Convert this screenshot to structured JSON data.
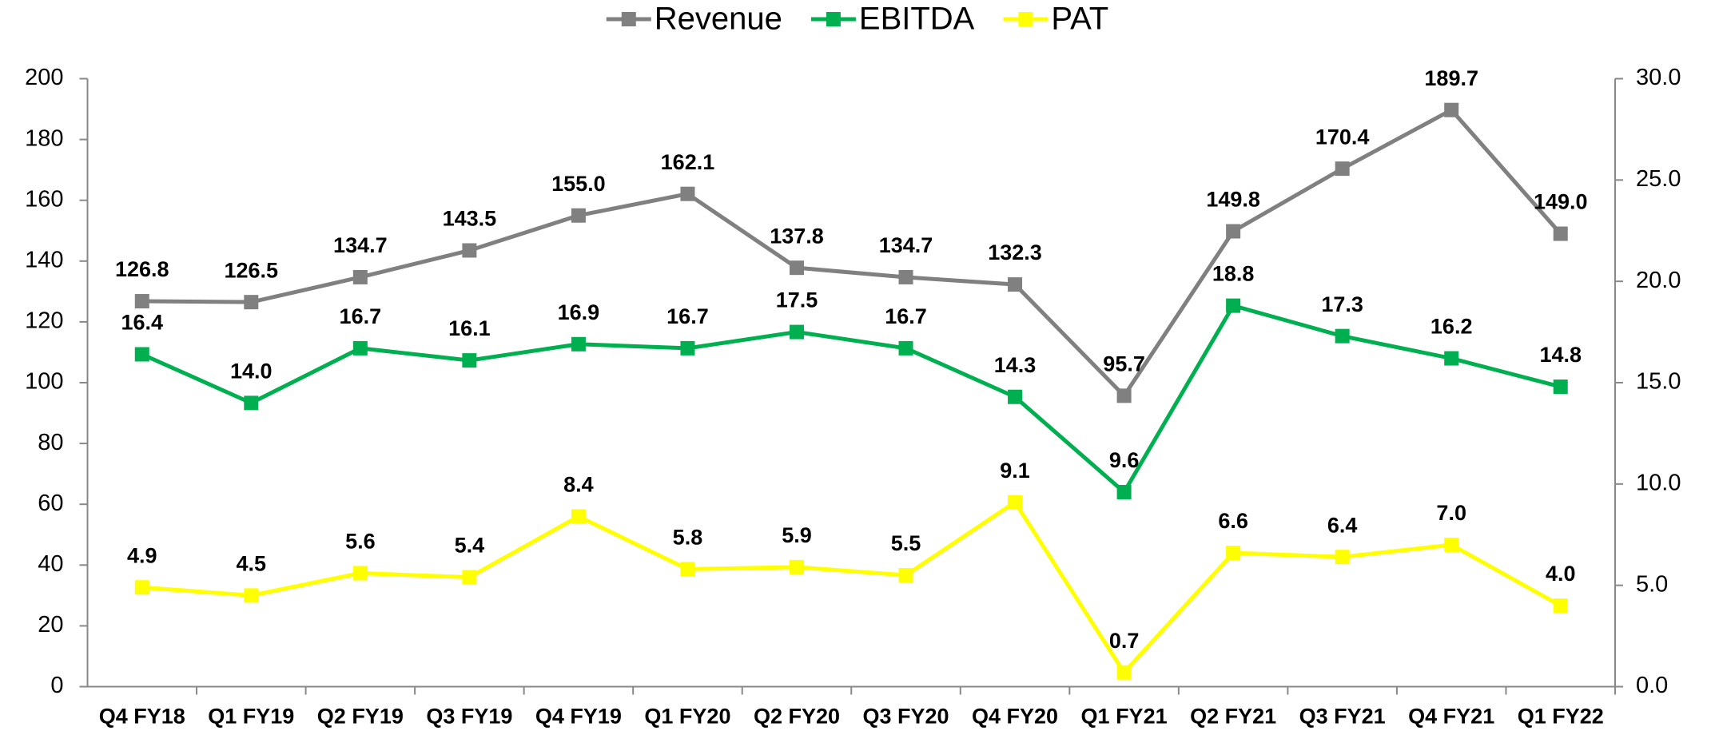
{
  "chart_data": {
    "type": "line",
    "categories": [
      "Q4 FY18",
      "Q1 FY19",
      "Q2 FY19",
      "Q3 FY19",
      "Q4 FY19",
      "Q1 FY20",
      "Q2 FY20",
      "Q3 FY20",
      "Q4 FY20",
      "Q1 FY21",
      "Q2 FY21",
      "Q3 FY21",
      "Q4 FY21",
      "Q1 FY22"
    ],
    "series": [
      {
        "name": "Revenue",
        "color": "#808080",
        "axis": "y",
        "values": [
          126.8,
          126.5,
          134.7,
          143.5,
          155.0,
          162.1,
          137.8,
          134.7,
          132.3,
          95.7,
          149.8,
          170.4,
          189.7,
          149.0
        ],
        "value_labels": [
          "126.8",
          "126.5",
          "134.7",
          "143.5",
          "155.0",
          "162.1",
          "137.8",
          "134.7",
          "132.3",
          "95.7",
          "149.8",
          "170.4",
          "189.7",
          "149.0"
        ]
      },
      {
        "name": "EBITDA",
        "color": "#00b050",
        "axis": "y2",
        "values": [
          16.4,
          14.0,
          16.7,
          16.1,
          16.9,
          16.7,
          17.5,
          16.7,
          14.3,
          9.6,
          18.8,
          17.3,
          16.2,
          14.8
        ],
        "value_labels": [
          "16.4",
          "14.0",
          "16.7",
          "16.1",
          "16.9",
          "16.7",
          "17.5",
          "16.7",
          "14.3",
          "9.6",
          "18.8",
          "17.3",
          "16.2",
          "14.8"
        ]
      },
      {
        "name": "PAT",
        "color": "#ffff00",
        "axis": "y2",
        "values": [
          4.9,
          4.5,
          5.6,
          5.4,
          8.4,
          5.8,
          5.9,
          5.5,
          9.1,
          0.7,
          6.6,
          6.4,
          7.0,
          4.0
        ],
        "value_labels": [
          "4.9",
          "4.5",
          "5.6",
          "5.4",
          "8.4",
          "5.8",
          "5.9",
          "5.5",
          "9.1",
          "0.7",
          "6.6",
          "6.4",
          "7.0",
          "4.0"
        ]
      }
    ],
    "ylim": [
      0,
      200
    ],
    "yticks": [
      0,
      20,
      40,
      60,
      80,
      100,
      120,
      140,
      160,
      180,
      200
    ],
    "y2lim": [
      0,
      30
    ],
    "y2ticks": [
      {
        "value": 0,
        "label": "0.0"
      },
      {
        "value": 5,
        "label": "5.0"
      },
      {
        "value": 10,
        "label": "10.0"
      },
      {
        "value": 15,
        "label": "15.0"
      },
      {
        "value": 20,
        "label": "20.0"
      },
      {
        "value": 25,
        "label": "25.0"
      },
      {
        "value": 30,
        "label": "30.0"
      }
    ],
    "legend": "top"
  }
}
